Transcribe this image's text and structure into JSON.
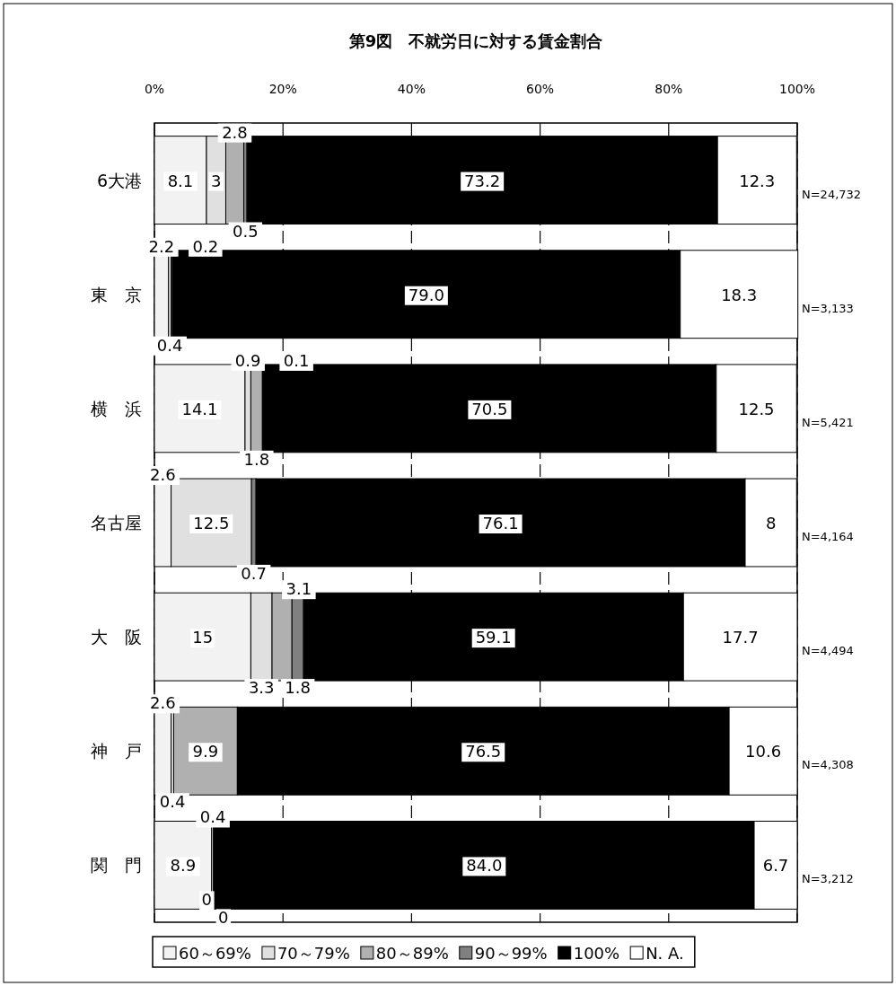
{
  "chart_data": {
    "type": "bar",
    "orientation": "horizontal",
    "stacked": true,
    "title": "第9図　不就労日に対する賃金割合",
    "categories": [
      "6大港",
      "東　京",
      "横　浜",
      "名古屋",
      "大　阪",
      "神　戸",
      "関　門"
    ],
    "series": [
      {
        "name": "60～69%",
        "color": "#f2f2f2",
        "values": [
          8.1,
          2.2,
          14.1,
          2.6,
          15,
          2.6,
          8.9
        ],
        "value_labels": [
          "8.1",
          "2.2",
          "14.1",
          "2.6",
          "15",
          "2.6",
          "8.9"
        ]
      },
      {
        "name": "70～79%",
        "color": "#e0e0e0",
        "values": [
          3,
          0.4,
          0.9,
          12.5,
          3.3,
          0.4,
          0.4
        ],
        "value_labels": [
          "3",
          "0.4",
          "0.9",
          "12.5",
          "3.3",
          "0.4",
          "0.4"
        ]
      },
      {
        "name": "80～89%",
        "color": "#b0b0b0",
        "values": [
          2.8,
          null,
          1.8,
          null,
          3.1,
          9.9,
          0
        ],
        "value_labels": [
          "2.8",
          null,
          "1.8",
          null,
          "3.1",
          "9.9",
          "0"
        ]
      },
      {
        "name": "90～99%",
        "color": "#808080",
        "values": [
          0.5,
          0.2,
          0.1,
          0.7,
          1.8,
          null,
          0
        ],
        "value_labels": [
          "0.5",
          "0.2",
          "0.1",
          "0.7",
          "1.8",
          null,
          "0"
        ]
      },
      {
        "name": "100%",
        "color": "#000000",
        "values": [
          73.2,
          79.0,
          70.5,
          76.1,
          59.1,
          76.5,
          84.0
        ],
        "value_labels": [
          "73.2",
          "79.0",
          "70.5",
          "76.1",
          "59.1",
          "76.5",
          "84.0"
        ]
      },
      {
        "name": "N. A.",
        "color": "#ffffff",
        "values": [
          12.3,
          18.3,
          12.5,
          8,
          17.7,
          10.6,
          6.7
        ],
        "value_labels": [
          "12.3",
          "18.3",
          "12.5",
          "8",
          "17.7",
          "10.6",
          "6.7"
        ]
      }
    ],
    "xlim": [
      0,
      100
    ],
    "xticks": [
      {
        "value": 0,
        "label": "0%"
      },
      {
        "value": 20,
        "label": "20%"
      },
      {
        "value": 40,
        "label": "40%"
      },
      {
        "value": 60,
        "label": "60%"
      },
      {
        "value": 80,
        "label": "80%"
      },
      {
        "value": 100,
        "label": "100%"
      }
    ],
    "grid": "x",
    "legend": "bottom",
    "annotations": [
      "N=24,732",
      "N=3,133",
      "N=5,421",
      "N=4,164",
      "N=4,494",
      "N=4,308",
      "N=3,212"
    ]
  }
}
